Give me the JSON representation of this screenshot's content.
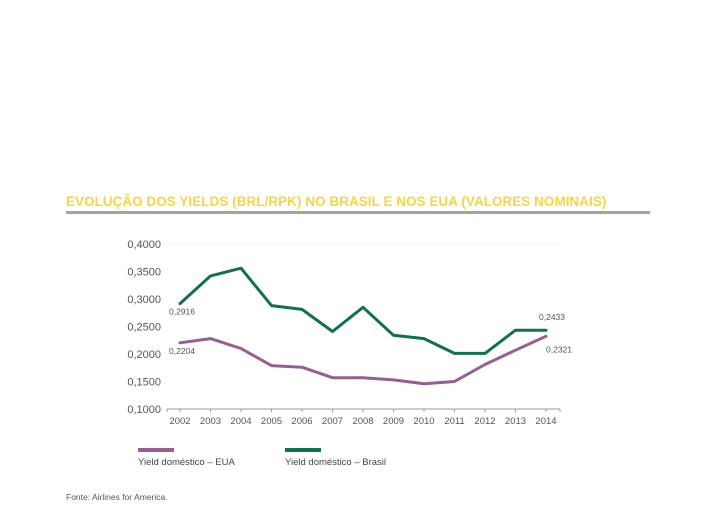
{
  "title": "EVOLUÇÃO DOS YIELDS (BRL/RPK) NO BRASIL E NOS EUA (VALORES NOMINAIS)",
  "source": "Fonte: Airlines for America.",
  "colors": {
    "title": "#f5d547",
    "eua": "#955f8f",
    "brasil": "#13704a",
    "axis": "#9a9a9a"
  },
  "chart_data": {
    "type": "line",
    "x": [
      "2002",
      "2003",
      "2004",
      "2005",
      "2006",
      "2007",
      "2008",
      "2009",
      "2010",
      "2011",
      "2012",
      "2013",
      "2014"
    ],
    "ylim": [
      0.1,
      0.4
    ],
    "yticks": [
      "0,1000",
      "0,1500",
      "0,2000",
      "0,2500",
      "0,3000",
      "0,3500",
      "0,4000"
    ],
    "grid": false,
    "legend": "bottom",
    "series": [
      {
        "name": "Yield doméstico – EUA",
        "color": "#955f8f",
        "values": [
          0.2204,
          0.228,
          0.21,
          0.179,
          0.176,
          0.157,
          0.157,
          0.153,
          0.146,
          0.15,
          0.181,
          0.207,
          0.2321
        ],
        "start_label": "0,2204",
        "end_label": "0,2321"
      },
      {
        "name": "Yield doméstico – Brasil",
        "color": "#13704a",
        "values": [
          0.2916,
          0.342,
          0.356,
          0.288,
          0.281,
          0.241,
          0.285,
          0.234,
          0.228,
          0.201,
          0.201,
          0.2433,
          0.2433
        ],
        "start_label": "0,2916",
        "end_label": "0,2433"
      }
    ]
  }
}
